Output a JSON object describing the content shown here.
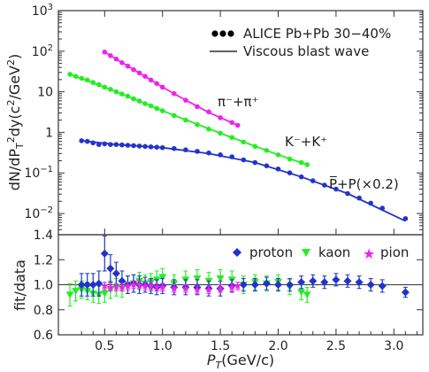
{
  "chart_data": [
    {
      "type": "scatter",
      "panel": "spectra",
      "ylabel": "dN/dP_T^2dy(c^2/GeV^2)",
      "yscale": "log",
      "ylim": [
        0.003,
        1000
      ],
      "xlim": [
        0.1,
        3.25
      ],
      "ytick_labels": [
        "10^3",
        "10^2",
        "10",
        "1",
        "10^-1",
        "10^-2"
      ],
      "legend": {
        "position": "top-right",
        "entries": [
          {
            "marker": "dots",
            "label": "ALICE Pb+Pb 30−40%"
          },
          {
            "marker": "line",
            "label": "Viscous blast wave"
          }
        ]
      },
      "annotations": [
        {
          "text": "π⁻+π⁺",
          "x": 1.45,
          "y": 4.2
        },
        {
          "text": "K⁻+K⁺",
          "x": 2.05,
          "y": 0.6
        },
        {
          "text": "P̅+P(×0.2)",
          "x": 2.35,
          "y": 0.028
        }
      ],
      "series": [
        {
          "name": "π⁻+π⁺",
          "color": "#ee22ee",
          "x": [
            0.5,
            0.55,
            0.6,
            0.65,
            0.7,
            0.75,
            0.8,
            0.85,
            0.9,
            0.95,
            1.0,
            1.1,
            1.2,
            1.3,
            1.4,
            1.5,
            1.6,
            1.65
          ],
          "y": [
            95,
            78,
            64,
            52,
            43,
            35,
            29,
            24,
            19.5,
            16,
            13,
            9,
            6.2,
            4.3,
            3.2,
            2.3,
            1.75,
            1.5
          ],
          "fit": {
            "x": [
              0.5,
              0.8,
              1.0,
              1.2,
              1.4,
              1.65
            ],
            "y": [
              95,
              29,
              13,
              6.2,
              3.1,
              1.5
            ]
          }
        },
        {
          "name": "K⁻+K⁺",
          "color": "#22ee22",
          "x": [
            0.2,
            0.25,
            0.3,
            0.35,
            0.4,
            0.45,
            0.5,
            0.55,
            0.6,
            0.65,
            0.7,
            0.75,
            0.8,
            0.85,
            0.9,
            0.95,
            1.0,
            1.1,
            1.2,
            1.3,
            1.4,
            1.5,
            1.6,
            1.7,
            1.8,
            1.9,
            2.0,
            2.1,
            2.2,
            2.25
          ],
          "y": [
            27,
            24,
            21.5,
            19.5,
            17,
            15,
            13,
            11.5,
            10,
            8.8,
            7.8,
            6.7,
            5.9,
            5.1,
            4.5,
            3.9,
            3.4,
            2.6,
            2.0,
            1.55,
            1.2,
            0.95,
            0.75,
            0.58,
            0.45,
            0.36,
            0.28,
            0.22,
            0.18,
            0.16
          ],
          "fit": {
            "x": [
              0.2,
              0.6,
              1.0,
              1.5,
              2.0,
              2.25
            ],
            "y": [
              27,
              10,
              3.4,
              0.95,
              0.28,
              0.16
            ]
          }
        },
        {
          "name": "P̅+P(×0.2)",
          "color": "#2233cc",
          "x": [
            0.3,
            0.35,
            0.4,
            0.45,
            0.5,
            0.55,
            0.6,
            0.65,
            0.7,
            0.75,
            0.8,
            0.85,
            0.9,
            0.95,
            1.0,
            1.1,
            1.2,
            1.3,
            1.4,
            1.5,
            1.6,
            1.7,
            1.8,
            1.9,
            2.0,
            2.1,
            2.2,
            2.3,
            2.4,
            2.5,
            2.6,
            2.7,
            2.8,
            2.9,
            3.1
          ],
          "y": [
            0.62,
            0.6,
            0.55,
            0.5,
            0.52,
            0.5,
            0.5,
            0.49,
            0.48,
            0.47,
            0.46,
            0.45,
            0.44,
            0.43,
            0.42,
            0.4,
            0.37,
            0.34,
            0.31,
            0.28,
            0.25,
            0.21,
            0.18,
            0.15,
            0.125,
            0.1,
            0.08,
            0.064,
            0.05,
            0.04,
            0.031,
            0.024,
            0.018,
            0.0135,
            0.0075
          ],
          "fit": {
            "x": [
              0.3,
              0.6,
              1.0,
              1.4,
              1.8,
              2.2,
              2.6,
              3.1
            ],
            "y": [
              0.62,
              0.5,
              0.42,
              0.3,
              0.18,
              0.08,
              0.031,
              0.0065
            ]
          }
        }
      ]
    },
    {
      "type": "scatter",
      "panel": "ratio",
      "xlabel": "P_T(GeV/c)",
      "ylabel": "fit/data",
      "xlim": [
        0.1,
        3.25
      ],
      "ylim": [
        0.6,
        1.4
      ],
      "x_ticks": [
        0.5,
        1.0,
        1.5,
        2.0,
        2.5,
        3.0
      ],
      "x_tick_labels": [
        "0.5",
        "1.0",
        "1.5",
        "2.0",
        "2.5",
        "3.0"
      ],
      "y_ticks": [
        0.6,
        0.8,
        1.0,
        1.2,
        1.4
      ],
      "y_tick_labels": [
        "0.6",
        "0.8",
        "1.0",
        "1.2",
        "1.4"
      ],
      "reference_line": 1.0,
      "legend": {
        "position": "top-right",
        "entries": [
          {
            "marker": "diamond",
            "color": "#2233cc",
            "label": "proton"
          },
          {
            "marker": "triangle-down",
            "color": "#22ee22",
            "label": "kaon"
          },
          {
            "marker": "star",
            "color": "#ee22ee",
            "label": "pion"
          }
        ]
      },
      "series": [
        {
          "name": "proton",
          "marker": "diamond",
          "color": "#2233cc",
          "x": [
            0.3,
            0.35,
            0.4,
            0.45,
            0.5,
            0.55,
            0.6,
            0.65,
            0.7,
            0.75,
            0.8,
            0.85,
            0.9,
            0.95,
            1.0,
            1.1,
            1.2,
            1.3,
            1.4,
            1.5,
            1.6,
            1.7,
            1.8,
            1.9,
            2.0,
            2.1,
            2.2,
            2.3,
            2.4,
            2.5,
            2.6,
            2.7,
            2.8,
            2.9,
            3.1
          ],
          "y": [
            1.0,
            1.0,
            1.0,
            1.01,
            1.25,
            1.13,
            1.09,
            1.03,
            1.0,
            1.01,
            1.0,
            1.0,
            0.99,
            0.98,
            0.99,
            0.98,
            0.98,
            0.98,
            0.97,
            0.97,
            0.99,
            1.0,
            1.0,
            1.01,
            1.0,
            1.0,
            1.02,
            1.03,
            1.02,
            1.04,
            1.03,
            1.02,
            1.0,
            0.99,
            0.94
          ],
          "err": [
            0.09,
            0.09,
            0.09,
            0.1,
            0.14,
            0.11,
            0.09,
            0.08,
            0.07,
            0.07,
            0.07,
            0.06,
            0.06,
            0.06,
            0.06,
            0.06,
            0.06,
            0.06,
            0.06,
            0.06,
            0.05,
            0.05,
            0.05,
            0.05,
            0.05,
            0.05,
            0.05,
            0.05,
            0.05,
            0.05,
            0.05,
            0.05,
            0.05,
            0.05,
            0.04
          ]
        },
        {
          "name": "kaon",
          "marker": "triangle-down",
          "color": "#22ee22",
          "x": [
            0.2,
            0.25,
            0.3,
            0.35,
            0.4,
            0.45,
            0.5,
            0.55,
            0.6,
            0.65,
            0.7,
            0.75,
            0.8,
            0.85,
            0.9,
            0.95,
            1.0,
            1.1,
            1.2,
            1.3,
            1.4,
            1.5,
            1.6,
            1.7,
            1.8,
            1.9,
            2.0,
            2.1,
            2.2,
            2.25
          ],
          "y": [
            0.92,
            0.95,
            0.96,
            0.95,
            0.93,
            0.92,
            0.93,
            0.96,
            0.98,
            0.97,
            1.0,
            1.01,
            1.03,
            1.01,
            1.02,
            1.04,
            1.06,
            1.01,
            1.04,
            1.05,
            1.03,
            1.05,
            1.04,
            1.0,
            1.02,
            1.01,
            1.02,
            0.98,
            0.94,
            0.92
          ],
          "err": [
            0.09,
            0.08,
            0.07,
            0.07,
            0.07,
            0.07,
            0.07,
            0.07,
            0.07,
            0.07,
            0.07,
            0.07,
            0.07,
            0.07,
            0.07,
            0.07,
            0.07,
            0.07,
            0.07,
            0.07,
            0.07,
            0.07,
            0.07,
            0.07,
            0.06,
            0.06,
            0.06,
            0.06,
            0.06,
            0.06
          ]
        },
        {
          "name": "pion",
          "marker": "star",
          "color": "#ee22ee",
          "x": [
            0.5,
            0.55,
            0.6,
            0.65,
            0.7,
            0.75,
            0.8,
            0.85,
            0.9,
            0.95,
            1.0,
            1.1,
            1.2,
            1.3,
            1.4,
            1.5,
            1.6,
            1.65
          ],
          "y": [
            0.99,
            0.98,
            0.98,
            0.98,
            0.99,
            1.0,
            1.0,
            0.99,
            0.99,
            0.98,
            0.98,
            0.97,
            0.97,
            0.96,
            0.96,
            0.97,
            0.98,
            0.99
          ],
          "err": [
            0.03,
            0.03,
            0.03,
            0.03,
            0.03,
            0.03,
            0.03,
            0.03,
            0.03,
            0.03,
            0.03,
            0.03,
            0.03,
            0.03,
            0.03,
            0.03,
            0.03,
            0.03
          ]
        }
      ]
    }
  ]
}
